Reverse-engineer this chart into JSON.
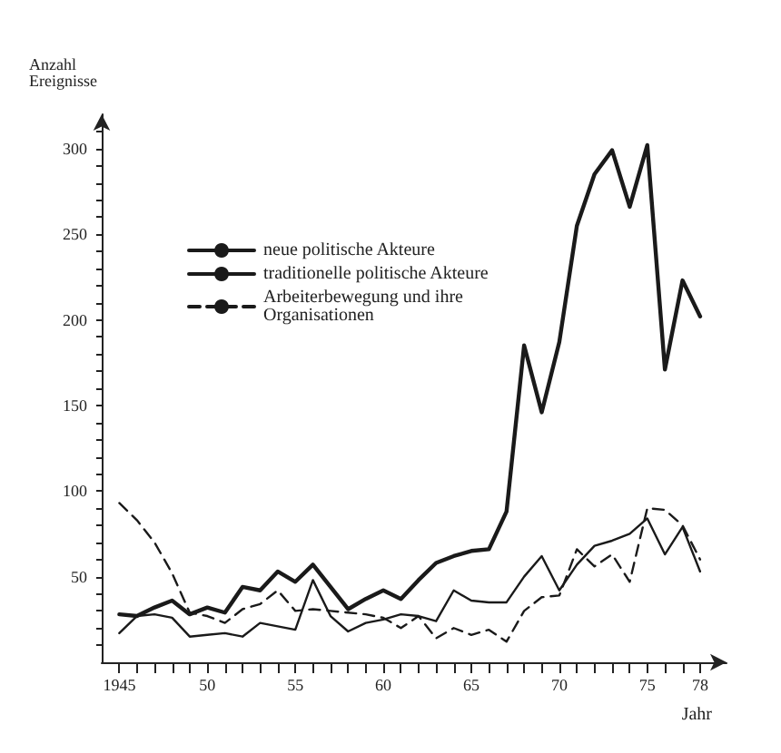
{
  "chart_data": {
    "type": "line",
    "xlabel": "Jahr",
    "ylabel": "Anzahl\nEreignisse",
    "x": [
      1945,
      1946,
      1947,
      1948,
      1949,
      1950,
      1951,
      1952,
      1953,
      1954,
      1955,
      1956,
      1957,
      1958,
      1959,
      1960,
      1961,
      1962,
      1963,
      1964,
      1965,
      1966,
      1967,
      1968,
      1969,
      1970,
      1971,
      1972,
      1973,
      1974,
      1975,
      1976,
      1977,
      1978
    ],
    "series": [
      {
        "name": "neue politische Akteure",
        "color": "#1a1a1a",
        "line_style": "solid",
        "values": [
          28,
          27,
          32,
          36,
          28,
          32,
          29,
          44,
          42,
          53,
          47,
          57,
          44,
          31,
          37,
          42,
          37,
          48,
          58,
          62,
          65,
          66,
          88,
          185,
          146,
          187,
          255,
          285,
          299,
          266,
          302,
          171,
          223,
          202
        ]
      },
      {
        "name": "traditionelle politische Akteure",
        "color": "#1a1a1a",
        "line_style": "solid",
        "values": [
          17,
          27,
          28,
          26,
          15,
          16,
          17,
          15,
          23,
          21,
          19,
          48,
          27,
          18,
          23,
          25,
          28,
          27,
          24,
          42,
          36,
          35,
          35,
          50,
          62,
          42,
          57,
          68,
          71,
          75,
          84,
          63,
          79,
          53
        ]
      },
      {
        "name": "Arbeiterbewegung und ihre\nOrganisationen",
        "color": "#1a1a1a",
        "line_style": "dashed",
        "values": [
          93,
          83,
          70,
          52,
          29,
          27,
          23,
          31,
          34,
          42,
          30,
          31,
          30,
          29,
          28,
          26,
          20,
          27,
          14,
          20,
          16,
          19,
          12,
          30,
          38,
          39,
          66,
          56,
          63,
          47,
          90,
          89,
          80,
          60
        ]
      }
    ],
    "xlim": [
      1944,
      1979.5
    ],
    "xticks": [
      {
        "value": 1945,
        "label": "1945"
      },
      {
        "value": 1946,
        "label": null
      },
      {
        "value": 1947,
        "label": null
      },
      {
        "value": 1948,
        "label": null
      },
      {
        "value": 1949,
        "label": null
      },
      {
        "value": 1950,
        "label": "50"
      },
      {
        "value": 1951,
        "label": null
      },
      {
        "value": 1952,
        "label": null
      },
      {
        "value": 1953,
        "label": null
      },
      {
        "value": 1954,
        "label": null
      },
      {
        "value": 1955,
        "label": "55"
      },
      {
        "value": 1956,
        "label": null
      },
      {
        "value": 1957,
        "label": null
      },
      {
        "value": 1958,
        "label": null
      },
      {
        "value": 1959,
        "label": null
      },
      {
        "value": 1960,
        "label": "60"
      },
      {
        "value": 1961,
        "label": null
      },
      {
        "value": 1962,
        "label": null
      },
      {
        "value": 1963,
        "label": null
      },
      {
        "value": 1964,
        "label": null
      },
      {
        "value": 1965,
        "label": "65"
      },
      {
        "value": 1966,
        "label": null
      },
      {
        "value": 1967,
        "label": null
      },
      {
        "value": 1968,
        "label": null
      },
      {
        "value": 1969,
        "label": null
      },
      {
        "value": 1970,
        "label": "70"
      },
      {
        "value": 1971,
        "label": null
      },
      {
        "value": 1972,
        "label": null
      },
      {
        "value": 1973,
        "label": null
      },
      {
        "value": 1974,
        "label": null
      },
      {
        "value": 1975,
        "label": "75"
      },
      {
        "value": 1976,
        "label": null
      },
      {
        "value": 1977,
        "label": null
      },
      {
        "value": 1978,
        "label": "78"
      }
    ],
    "ylim": [
      0,
      320
    ],
    "yticks": [
      {
        "value": 10,
        "label": null
      },
      {
        "value": 20,
        "label": null
      },
      {
        "value": 30,
        "label": null
      },
      {
        "value": 40,
        "label": null
      },
      50,
      {
        "value": 60,
        "label": null
      },
      {
        "value": 70,
        "label": null
      },
      {
        "value": 80,
        "label": null
      },
      {
        "value": 90,
        "label": null
      },
      100,
      {
        "value": 110,
        "label": null
      },
      {
        "value": 120,
        "label": null
      },
      {
        "value": 130,
        "label": null
      },
      {
        "value": 140,
        "label": null
      },
      150,
      {
        "value": 160,
        "label": null
      },
      {
        "value": 170,
        "label": null
      },
      {
        "value": 180,
        "label": null
      },
      {
        "value": 190,
        "label": null
      },
      200,
      {
        "value": 210,
        "label": null
      },
      {
        "value": 220,
        "label": null
      },
      {
        "value": 230,
        "label": null
      },
      {
        "value": 240,
        "label": null
      },
      250,
      {
        "value": 260,
        "label": null
      },
      {
        "value": 270,
        "label": null
      },
      {
        "value": 280,
        "label": null
      },
      {
        "value": 290,
        "label": null
      },
      300,
      {
        "value": 310,
        "label": null
      }
    ],
    "grid": false,
    "legend": "top left",
    "marker": "none"
  }
}
